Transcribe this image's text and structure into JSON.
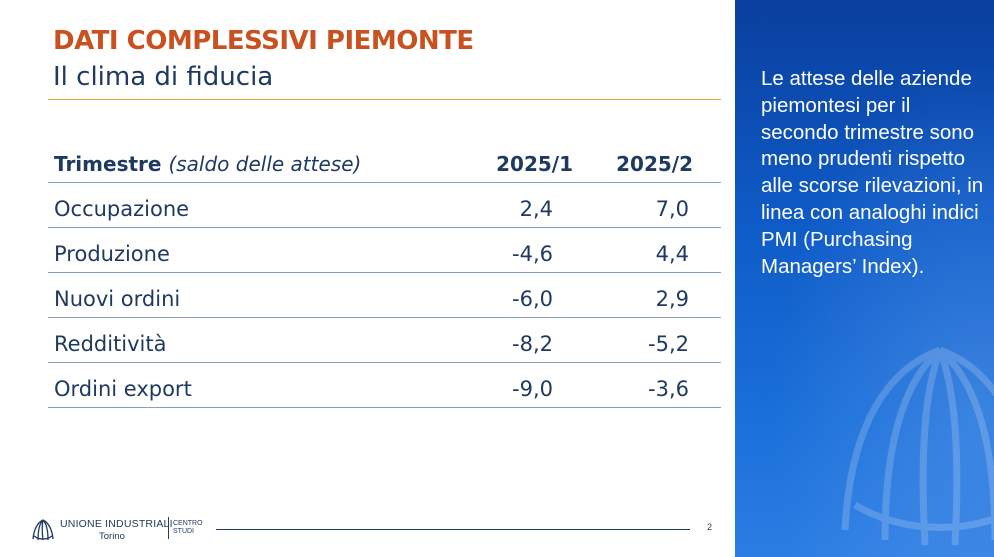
{
  "title": {
    "main": "DATI COMPLESSIVI PIEMONTE",
    "subtitle": "Il clima di fiducia"
  },
  "table": {
    "header": {
      "label_bold": "Trimestre",
      "label_italic": "(saldo delle attese)",
      "col1": "2025/1",
      "col2": "2025/2"
    },
    "rows": [
      {
        "label": "Occupazione",
        "v1": "2,4",
        "v2": "7,0"
      },
      {
        "label": "Produzione",
        "v1": "-4,6",
        "v2": "4,4"
      },
      {
        "label": "Nuovi ordini",
        "v1": "-6,0",
        "v2": "2,9"
      },
      {
        "label": "Redditività",
        "v1": "-8,2",
        "v2": "-5,2"
      },
      {
        "label": "Ordini export",
        "v1": "-9,0",
        "v2": "-3,6"
      }
    ]
  },
  "side_panel": {
    "text": "Le attese delle aziende piemontesi per il secondo trimestre sono meno prudenti rispetto alle scorse rilevazioni, in linea con analoghi indici PMI (Purchasing Managers’ Index)."
  },
  "footer": {
    "org": "UNIONE INDUSTRIALI",
    "city": "Torino",
    "centro_line1": "CENTRO",
    "centro_line2": "STUDI",
    "page_number": "2"
  },
  "colors": {
    "title_orange": "#c8511f",
    "navy": "#1f3a60",
    "rule_gold": "#e3a23b",
    "panel_blue": "#0e5bc7"
  },
  "icons": {
    "logo": "unione-industriali-shell-logo-icon",
    "watermark": "shell-watermark-icon"
  }
}
